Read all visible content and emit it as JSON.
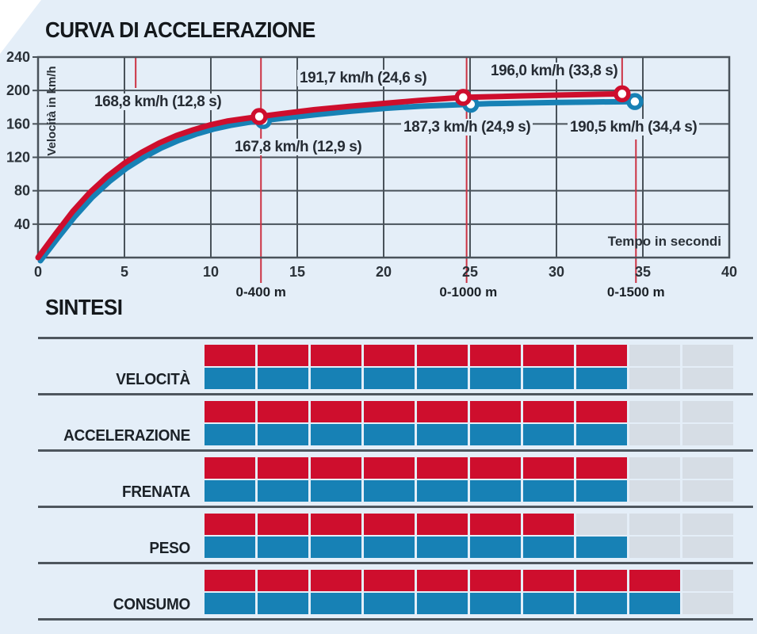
{
  "chart_data": {
    "type": "line",
    "title": "CURVA DI ACCELERAZIONE",
    "xlabel": "Tempo in secondi",
    "ylabel": "Velocità in km/h",
    "xlim": [
      0,
      40
    ],
    "ylim": [
      0,
      240
    ],
    "xticks": [
      0,
      5,
      10,
      15,
      20,
      25,
      30,
      35,
      40
    ],
    "yticks": [
      40,
      80,
      120,
      160,
      200,
      240
    ],
    "grid": true,
    "series": [
      {
        "name": "red",
        "color": "#ce0e2d",
        "points": [
          [
            0,
            0
          ],
          [
            1,
            28
          ],
          [
            2,
            55
          ],
          [
            3,
            78
          ],
          [
            4,
            97
          ],
          [
            5,
            113
          ],
          [
            6,
            126
          ],
          [
            7,
            137
          ],
          [
            8,
            146
          ],
          [
            9,
            153
          ],
          [
            10,
            159
          ],
          [
            11,
            163.5
          ],
          [
            12,
            166.5
          ],
          [
            12.8,
            168.8
          ],
          [
            14,
            172
          ],
          [
            16,
            177
          ],
          [
            18,
            181
          ],
          [
            20,
            184.5
          ],
          [
            22,
            188
          ],
          [
            24.6,
            191.7
          ],
          [
            26,
            192.5
          ],
          [
            28,
            193.5
          ],
          [
            30,
            194.5
          ],
          [
            32,
            195.3
          ],
          [
            33.8,
            196
          ]
        ],
        "markers": [
          [
            12.8,
            168.8
          ],
          [
            24.6,
            191.7
          ],
          [
            33.8,
            196
          ]
        ]
      },
      {
        "name": "blue",
        "color": "#1781b5",
        "points": [
          [
            0,
            0
          ],
          [
            1,
            27
          ],
          [
            2,
            53
          ],
          [
            3,
            76
          ],
          [
            4,
            95
          ],
          [
            5,
            111
          ],
          [
            6,
            124
          ],
          [
            7,
            135
          ],
          [
            8,
            144
          ],
          [
            9,
            151.5
          ],
          [
            10,
            157.5
          ],
          [
            11,
            162
          ],
          [
            12,
            165.5
          ],
          [
            12.9,
            167.8
          ],
          [
            14,
            170.5
          ],
          [
            16,
            175
          ],
          [
            18,
            179
          ],
          [
            20,
            182.5
          ],
          [
            22,
            185
          ],
          [
            24.9,
            187.3
          ],
          [
            26,
            188
          ],
          [
            28,
            188.8
          ],
          [
            30,
            189.4
          ],
          [
            32,
            190
          ],
          [
            34.4,
            190.5
          ]
        ],
        "markers": [
          [
            12.9,
            167.8
          ],
          [
            24.9,
            187.3
          ],
          [
            34.4,
            190.5
          ]
        ]
      }
    ],
    "annotations": [
      {
        "speed": "168,8",
        "unit": "km/h",
        "time": "(12,8 s)"
      },
      {
        "speed": "167,8",
        "unit": "km/h",
        "time": "(12,9 s)"
      },
      {
        "speed": "191,7",
        "unit": "km/h",
        "time": "(24,6 s)"
      },
      {
        "speed": "187,3",
        "unit": "km/h",
        "time": "(24,9 s)"
      },
      {
        "speed": "196,0",
        "unit": "km/h",
        "time": "(33,8 s)"
      },
      {
        "speed": "190,5",
        "unit": "km/h",
        "time": "(34,4 s)"
      }
    ],
    "distance_markers": [
      {
        "label": "0-400 m",
        "t": 12.9
      },
      {
        "label": "0-1000 m",
        "t": 24.9
      },
      {
        "label": "0-1500 m",
        "t": 34.6
      }
    ],
    "guide_lines": [
      {
        "t": 5.65,
        "seg": "top-short"
      },
      {
        "t": 12.9,
        "seg": "full"
      },
      {
        "t": 24.8,
        "seg": "full"
      },
      {
        "t": 33.8,
        "seg": "top"
      },
      {
        "t": 34.6,
        "seg": "lower"
      }
    ]
  },
  "sintesi": {
    "title": "SINTESI",
    "max_segments": 10,
    "rows": [
      {
        "label": "VELOCITÀ",
        "red": 8,
        "blue": 8
      },
      {
        "label": "ACCELERAZIONE",
        "red": 8,
        "blue": 8
      },
      {
        "label": "FRENATA",
        "red": 8,
        "blue": 8
      },
      {
        "label": "PESO",
        "red": 7,
        "blue": 8
      },
      {
        "label": "CONSUMO",
        "red": 9,
        "blue": 9
      }
    ]
  },
  "colors": {
    "red": "#ce0e2d",
    "blue": "#1781b5",
    "background": "#e4eef8",
    "grid": "#49525a",
    "guide_line": "#cc3344",
    "empty_segment": "#d6dde5",
    "separator": "#4e565e",
    "tick_text": "#2a3138"
  }
}
